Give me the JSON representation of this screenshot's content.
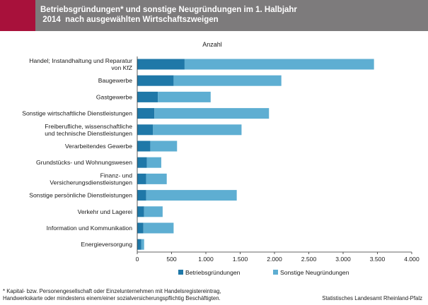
{
  "header": {
    "title_line1": "Betriebsgründungen* und sonstige Neugründungen im 1. Halbjahr",
    "title_line2": " 2014  nach ausgewählten Wirtschaftszweigen"
  },
  "colors": {
    "header_bg": "#7d7b7c",
    "header_accent": "#a8113b",
    "betriebsgruendungen": "#1f78a8",
    "sonstige_neugruendungen": "#5eaed2"
  },
  "chart_data": {
    "type": "bar",
    "orientation": "horizontal",
    "stacked": true,
    "title": "Anzahl",
    "categories": [
      [
        "Handel; Instandhaltung und Reparatur",
        "von KfZ"
      ],
      [
        "Baugewerbe"
      ],
      [
        "Gastgewerbe"
      ],
      [
        "Sonstige wirtschaftliche Dienstleistungen"
      ],
      [
        "Freiberufliche, wissenschaftliche",
        "und technische Dienstleistungen"
      ],
      [
        "Verarbeitendes Gewerbe"
      ],
      [
        "Grundstücks- und Wohnungswesen"
      ],
      [
        "Finanz- und",
        "Versicherungsdienstleistungen"
      ],
      [
        "Sonstige persönliche Dienstleistungen"
      ],
      [
        "Verkehr und Lagerei"
      ],
      [
        "Information und Kommunikation"
      ],
      [
        "Energieversorgung"
      ]
    ],
    "series": [
      {
        "name": "Betriebsgründungen",
        "values": [
          690,
          530,
          300,
          250,
          230,
          190,
          140,
          130,
          130,
          100,
          90,
          60
        ]
      },
      {
        "name": "Sonstige Neugründungen",
        "values": [
          2760,
          1570,
          770,
          1670,
          1290,
          390,
          210,
          300,
          1320,
          270,
          440,
          40
        ]
      }
    ],
    "xlim": [
      0,
      4000
    ],
    "xticks": [
      0,
      500,
      1000,
      1500,
      2000,
      2500,
      3000,
      3500,
      4000
    ],
    "xtick_labels": [
      "0",
      "500",
      "1.000",
      "1.500",
      "2.000",
      "2.500",
      "3.000",
      "3.500",
      "4.000"
    ],
    "grid": false,
    "legend_position": "bottom"
  },
  "footnote": {
    "line1": "* Kapital- bzw. Personengesellschaft oder Einzelunternehmen mit  Handelsregistereintrag,",
    "line2": "Handwerkskarte oder mindestens einem/einer sozialversicherungspflichtig Beschäftigten."
  },
  "source": "Statistisches Landesamt Rheinland-Pfalz"
}
